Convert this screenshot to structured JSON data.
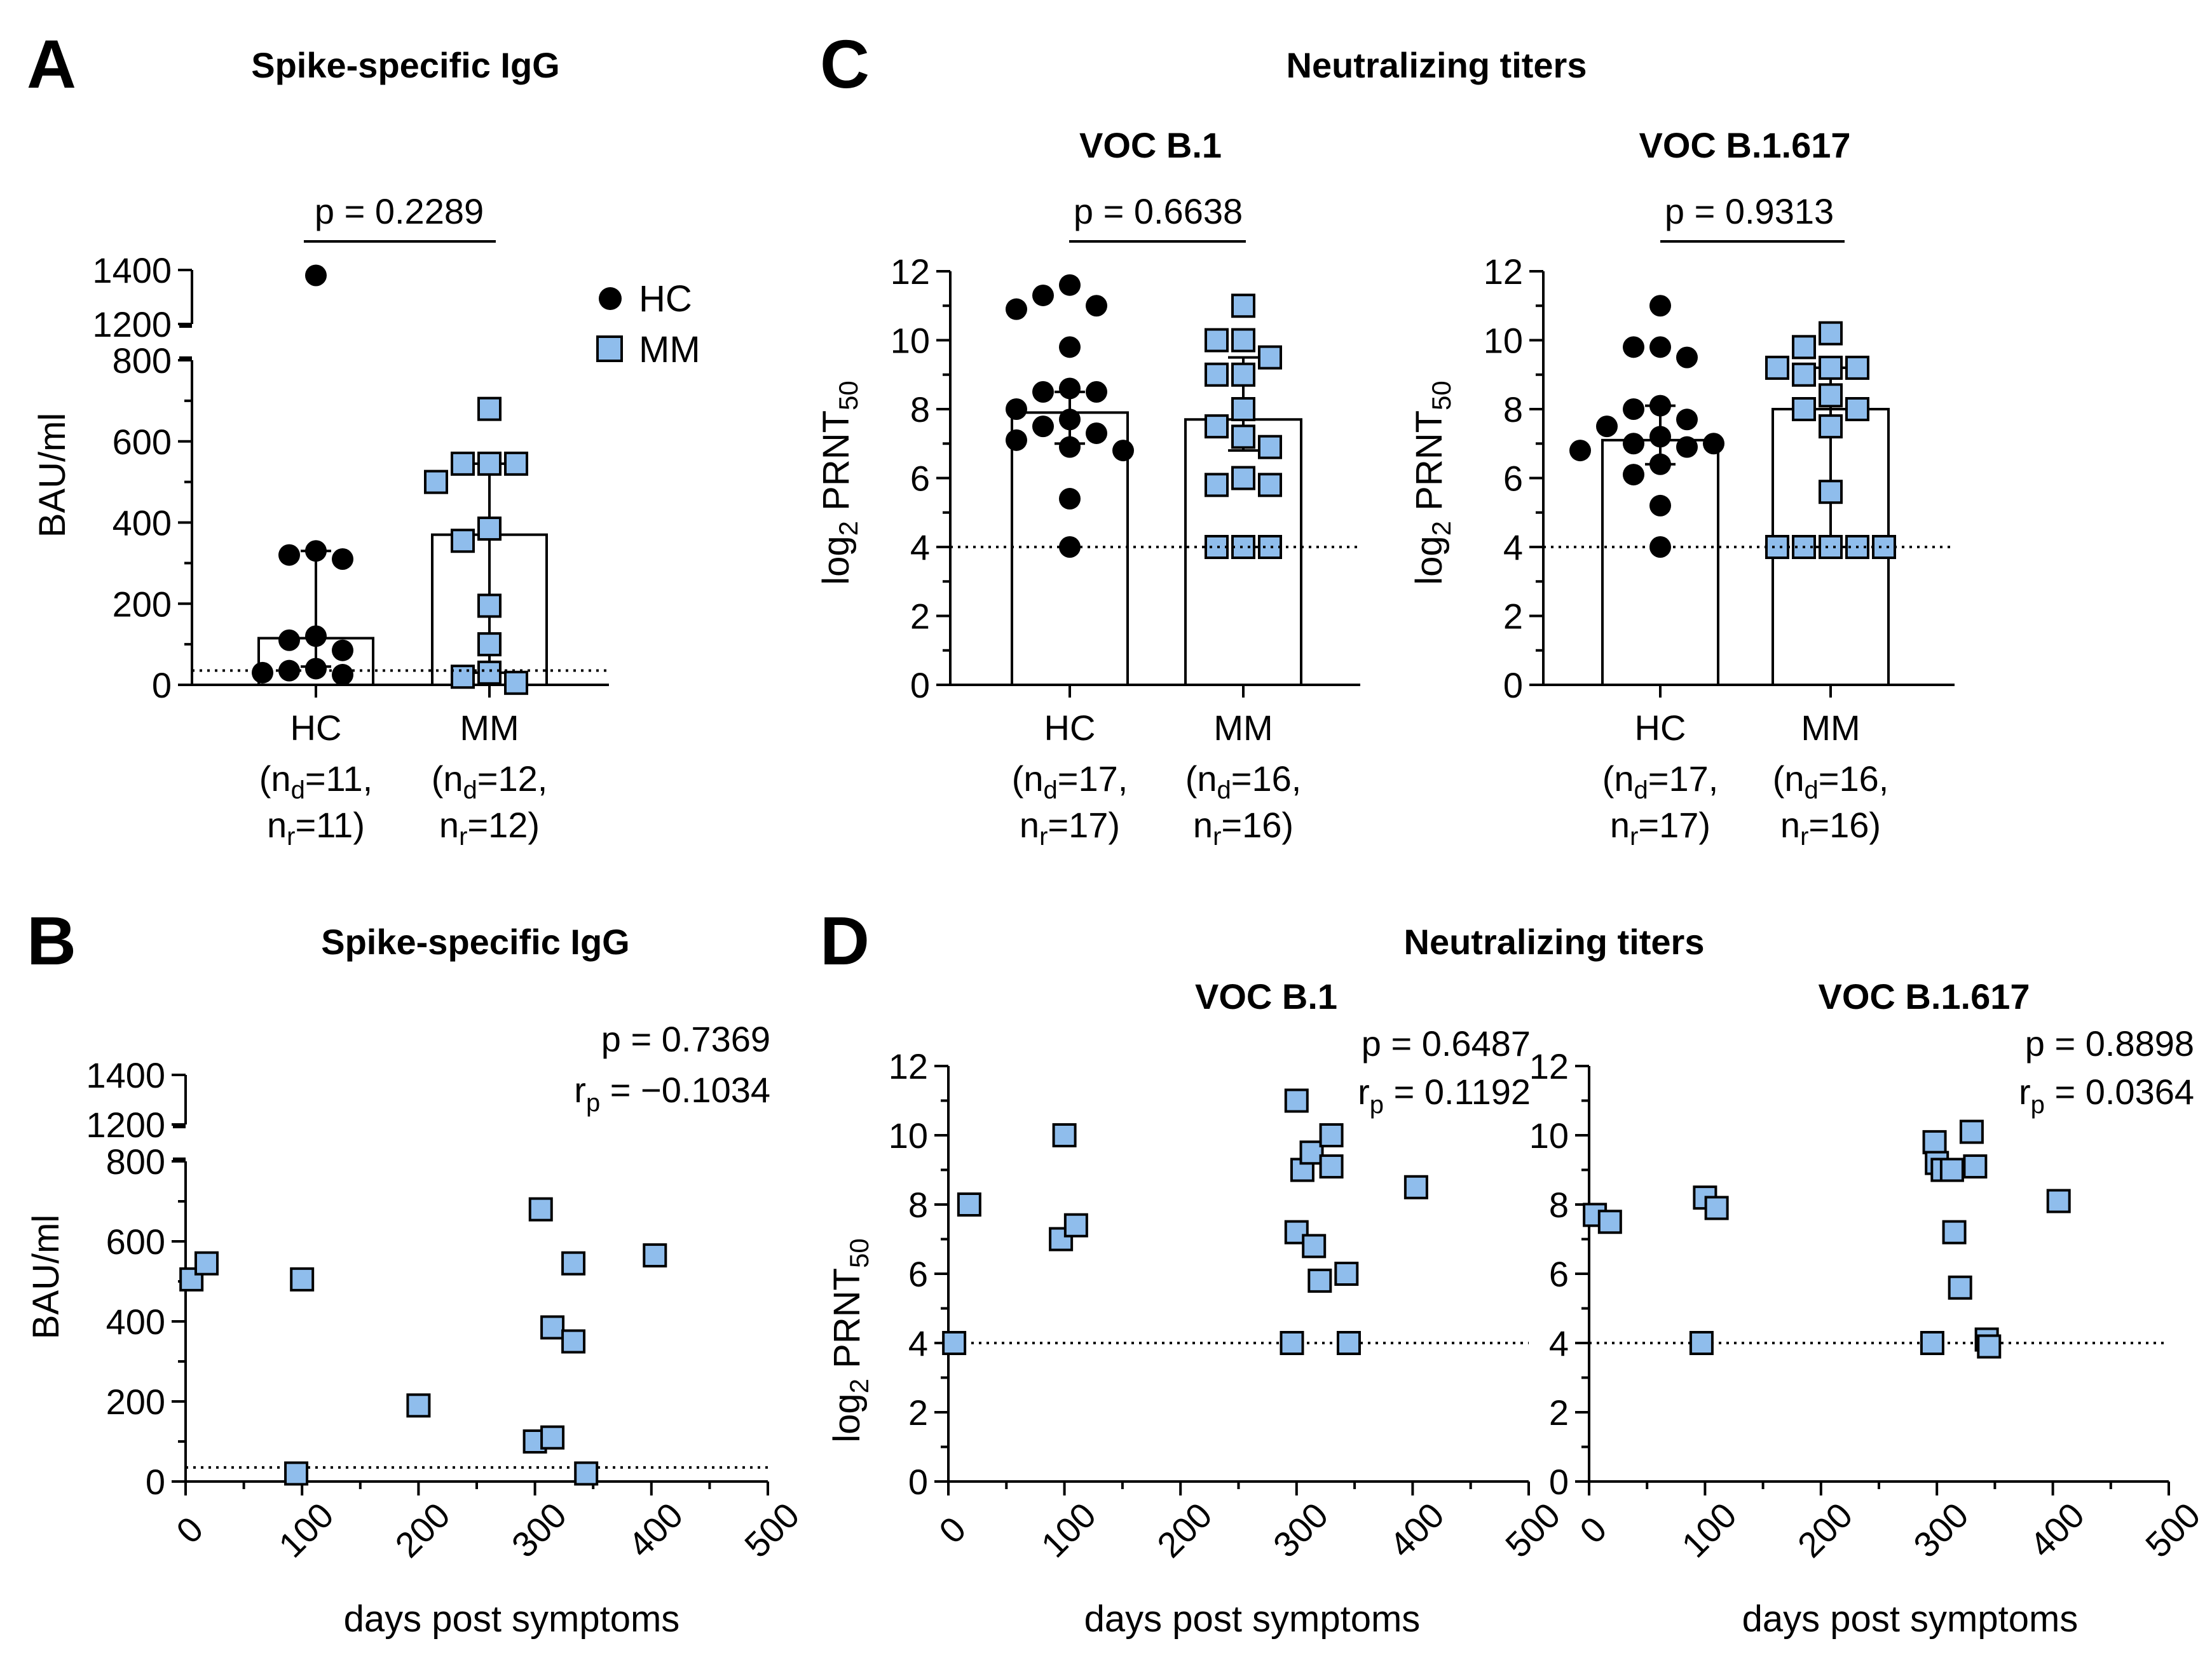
{
  "colors": {
    "hc": "#000000",
    "mm": "#8fbdec",
    "outline": "#000000"
  },
  "legend": [
    {
      "label": "HC",
      "marker": "circle"
    },
    {
      "label": "MM",
      "marker": "square"
    }
  ],
  "chart_data": [
    {
      "id": "A",
      "type": "bar",
      "letter": "A",
      "title": "Spike-specific IgG",
      "xlabel": "",
      "ylabel": "BAU/ml",
      "ylim": [
        0,
        800
      ],
      "ylim_upper": [
        1200,
        1400
      ],
      "yticks": [
        0,
        200,
        400,
        600,
        800
      ],
      "yticks_upper": [
        1200,
        1400
      ],
      "threshold": 35.2,
      "pvalue": "p = 0.2289",
      "categories": [
        "HC",
        "MM"
      ],
      "category_labels": [
        {
          "name": "HC",
          "nd": "11",
          "nr": "11"
        },
        {
          "name": "MM",
          "nd": "12",
          "nr": "12"
        }
      ],
      "series": [
        {
          "name": "HC",
          "marker": "circle",
          "bar": 115,
          "error": [
            45,
            330
          ],
          "points": [
            1380,
            330,
            310,
            320,
            120,
            110,
            85,
            40,
            35,
            30,
            25
          ]
        },
        {
          "name": "MM",
          "marker": "square",
          "bar": 370,
          "error": [
            30,
            545
          ],
          "points": [
            680,
            545,
            545,
            545,
            500,
            385,
            355,
            195,
            100,
            30,
            20,
            5
          ]
        }
      ]
    },
    {
      "id": "C1",
      "type": "bar",
      "letter": "C",
      "group_title": "Neutralizing titers",
      "title": "VOC B.1",
      "ylabel": "log2 PRNT50",
      "ylim": [
        0,
        12
      ],
      "yticks": [
        0,
        2,
        4,
        6,
        8,
        10,
        12
      ],
      "threshold": 4,
      "pvalue": "p = 0.6638",
      "categories": [
        "HC",
        "MM"
      ],
      "category_labels": [
        {
          "name": "HC",
          "nd": "17",
          "nr": "17"
        },
        {
          "name": "MM",
          "nd": "16",
          "nr": "16"
        }
      ],
      "series": [
        {
          "name": "HC",
          "marker": "circle",
          "bar": 7.9,
          "error": [
            7.0,
            8.5
          ],
          "points": [
            11.6,
            11.3,
            11.0,
            10.9,
            9.8,
            8.6,
            8.5,
            8.5,
            8.0,
            7.7,
            7.5,
            7.3,
            7.1,
            6.9,
            6.8,
            5.4,
            4.0
          ]
        },
        {
          "name": "MM",
          "marker": "square",
          "bar": 7.7,
          "error": [
            6.8,
            9.5
          ],
          "points": [
            11.0,
            10.0,
            10.0,
            9.5,
            9.0,
            9.0,
            8.0,
            7.5,
            7.2,
            6.9,
            6.0,
            5.8,
            5.8,
            4.0,
            4.0,
            4.0
          ]
        }
      ]
    },
    {
      "id": "C2",
      "type": "bar",
      "title": "VOC B.1.617",
      "ylabel": "log2 PRNT50",
      "ylim": [
        0,
        12
      ],
      "yticks": [
        0,
        2,
        4,
        6,
        8,
        10,
        12
      ],
      "threshold": 4,
      "pvalue": "p = 0.9313",
      "categories": [
        "HC",
        "MM"
      ],
      "category_labels": [
        {
          "name": "HC",
          "nd": "17",
          "nr": "17"
        },
        {
          "name": "MM",
          "nd": "16",
          "nr": "16"
        }
      ],
      "series": [
        {
          "name": "HC",
          "marker": "circle",
          "bar": 7.1,
          "error": [
            6.4,
            8.1
          ],
          "points": [
            11.0,
            9.8,
            9.8,
            9.5,
            8.1,
            8.0,
            7.7,
            7.5,
            7.2,
            7.0,
            7.0,
            6.9,
            6.8,
            6.4,
            6.1,
            5.2,
            4.0
          ]
        },
        {
          "name": "MM",
          "marker": "square",
          "bar": 8.0,
          "error": [
            4.0,
            9.2
          ],
          "points": [
            10.2,
            9.8,
            9.2,
            9.2,
            9.2,
            9.0,
            8.4,
            8.0,
            8.0,
            7.5,
            5.6,
            4.0,
            4.0,
            4.0,
            4.0,
            4.0
          ]
        }
      ]
    },
    {
      "id": "B",
      "type": "scatter",
      "letter": "B",
      "title": "Spike-specific IgG",
      "xlabel": "days post symptoms",
      "ylabel": "BAU/ml",
      "xlim": [
        0,
        500
      ],
      "xticks": [
        0,
        100,
        200,
        300,
        400,
        500
      ],
      "ylim": [
        0,
        800
      ],
      "ylim_upper": [
        1200,
        1400
      ],
      "yticks": [
        0,
        200,
        400,
        600,
        800
      ],
      "yticks_upper": [
        1200,
        1400
      ],
      "threshold": 35.2,
      "stat_p": "p = 0.7369",
      "stat_r": "= −0.1034",
      "points": [
        [
          5,
          505
        ],
        [
          18,
          545
        ],
        [
          95,
          20
        ],
        [
          100,
          505
        ],
        [
          200,
          190
        ],
        [
          300,
          100
        ],
        [
          305,
          680
        ],
        [
          315,
          110
        ],
        [
          315,
          385
        ],
        [
          333,
          545
        ],
        [
          333,
          350
        ],
        [
          344,
          20
        ],
        [
          403,
          565
        ]
      ]
    },
    {
      "id": "D1",
      "type": "scatter",
      "letter": "D",
      "group_title": "Neutralizing titers",
      "title": "VOC B.1",
      "xlabel": "days post symptoms",
      "ylabel": "log2 PRNT50",
      "xlim": [
        0,
        500
      ],
      "xticks": [
        0,
        100,
        200,
        300,
        400,
        500
      ],
      "ylim": [
        0,
        12
      ],
      "yticks": [
        0,
        2,
        4,
        6,
        8,
        10,
        12
      ],
      "threshold": 4,
      "stat_p": "p = 0.6487",
      "stat_r": "= 0.1192",
      "points": [
        [
          5,
          4.0
        ],
        [
          18,
          8.0
        ],
        [
          100,
          10.0
        ],
        [
          97,
          7.0
        ],
        [
          110,
          7.4
        ],
        [
          296,
          4.0
        ],
        [
          300,
          11.0
        ],
        [
          300,
          7.2
        ],
        [
          305,
          9.0
        ],
        [
          313,
          9.5
        ],
        [
          315,
          6.8
        ],
        [
          320,
          5.8
        ],
        [
          330,
          10.0
        ],
        [
          330,
          9.1
        ],
        [
          343,
          6.0
        ],
        [
          345,
          4.0
        ],
        [
          403,
          8.5
        ]
      ]
    },
    {
      "id": "D2",
      "type": "scatter",
      "title": "VOC B.1.617",
      "xlabel": "days post symptoms",
      "ylabel": "",
      "xlim": [
        0,
        500
      ],
      "xticks": [
        0,
        100,
        200,
        300,
        400,
        500
      ],
      "ylim": [
        0,
        12
      ],
      "yticks": [
        0,
        2,
        4,
        6,
        8,
        10,
        12
      ],
      "threshold": 4,
      "stat_p": "p = 0.8898",
      "stat_r": "= 0.0364",
      "points": [
        [
          5,
          7.7
        ],
        [
          18,
          7.5
        ],
        [
          97,
          4.0
        ],
        [
          100,
          8.2
        ],
        [
          110,
          7.9
        ],
        [
          296,
          4.0
        ],
        [
          298,
          9.8
        ],
        [
          300,
          9.2
        ],
        [
          305,
          9.0
        ],
        [
          313,
          9.0
        ],
        [
          315,
          7.2
        ],
        [
          320,
          5.6
        ],
        [
          330,
          10.1
        ],
        [
          333,
          9.1
        ],
        [
          343,
          4.1
        ],
        [
          345,
          3.9
        ],
        [
          405,
          8.1
        ]
      ]
    }
  ]
}
